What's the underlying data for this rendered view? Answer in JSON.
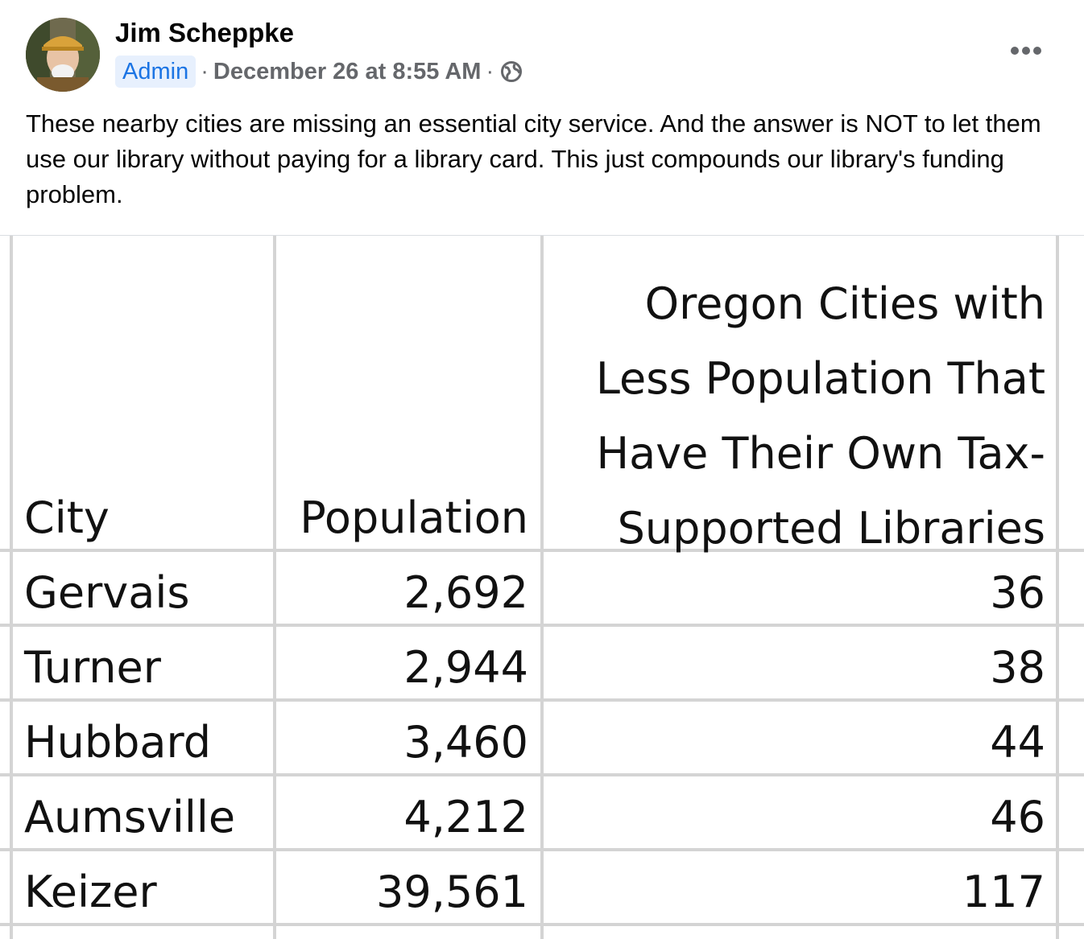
{
  "post": {
    "author": "Jim Scheppke",
    "role_badge": "Admin",
    "separator": "·",
    "timestamp": "December 26 at 8:55 AM",
    "audience_icon": "globe-icon",
    "more_icon": "more-options-icon",
    "text": "These nearby cities are missing an essential city service. And the answer is NOT to let them use our library without paying for a library card. This just compounds our library's funding problem."
  },
  "colors": {
    "badge_bg": "#e7f0fd",
    "badge_text": "#1b74e4",
    "meta_text": "#65676b",
    "grid_line": "#d4d4d4"
  },
  "table": {
    "headers": {
      "city": "City",
      "population": "Population",
      "libraries_lines": [
        "Oregon Cities with",
        "Less Population That",
        "Have Their Own Tax-",
        "Supported  Libraries"
      ]
    },
    "rows": [
      {
        "city": "Gervais",
        "population": "2,692",
        "libraries": "36"
      },
      {
        "city": "Turner",
        "population": "2,944",
        "libraries": "38"
      },
      {
        "city": "Hubbard",
        "population": "3,460",
        "libraries": "44"
      },
      {
        "city": "Aumsville",
        "population": "4,212",
        "libraries": "46"
      },
      {
        "city": "Keizer",
        "population": "39,561",
        "libraries": "117"
      }
    ]
  }
}
